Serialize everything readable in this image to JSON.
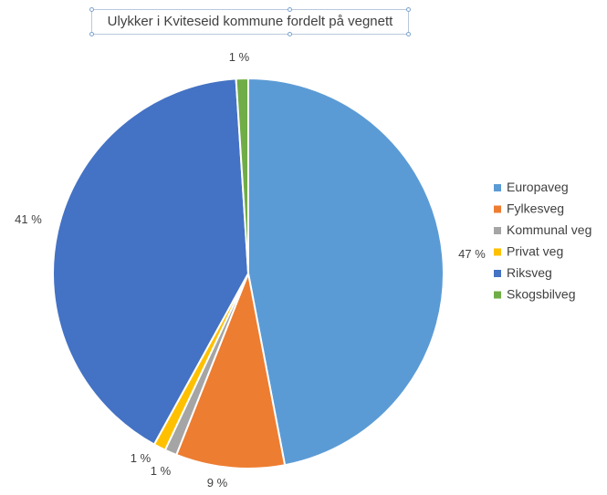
{
  "chart_data": {
    "type": "pie",
    "title": "Ulykker i Kviteseid kommune fordelt på vegnett",
    "categories": [
      "Europaveg",
      "Fylkesveg",
      "Kommunal veg",
      "Privat veg",
      "Riksveg",
      "Skogsbilveg"
    ],
    "values": [
      47,
      9,
      1,
      1,
      41,
      1
    ],
    "labels": [
      "47 %",
      "9 %",
      "1 %",
      "1 %",
      "41 %",
      "1 %"
    ],
    "colors": [
      "#5b9bd5",
      "#ed7d31",
      "#a5a5a5",
      "#ffc000",
      "#4472c4",
      "#70ad47"
    ],
    "legend_position": "right",
    "start_angle_deg": 0,
    "direction": "clockwise"
  }
}
